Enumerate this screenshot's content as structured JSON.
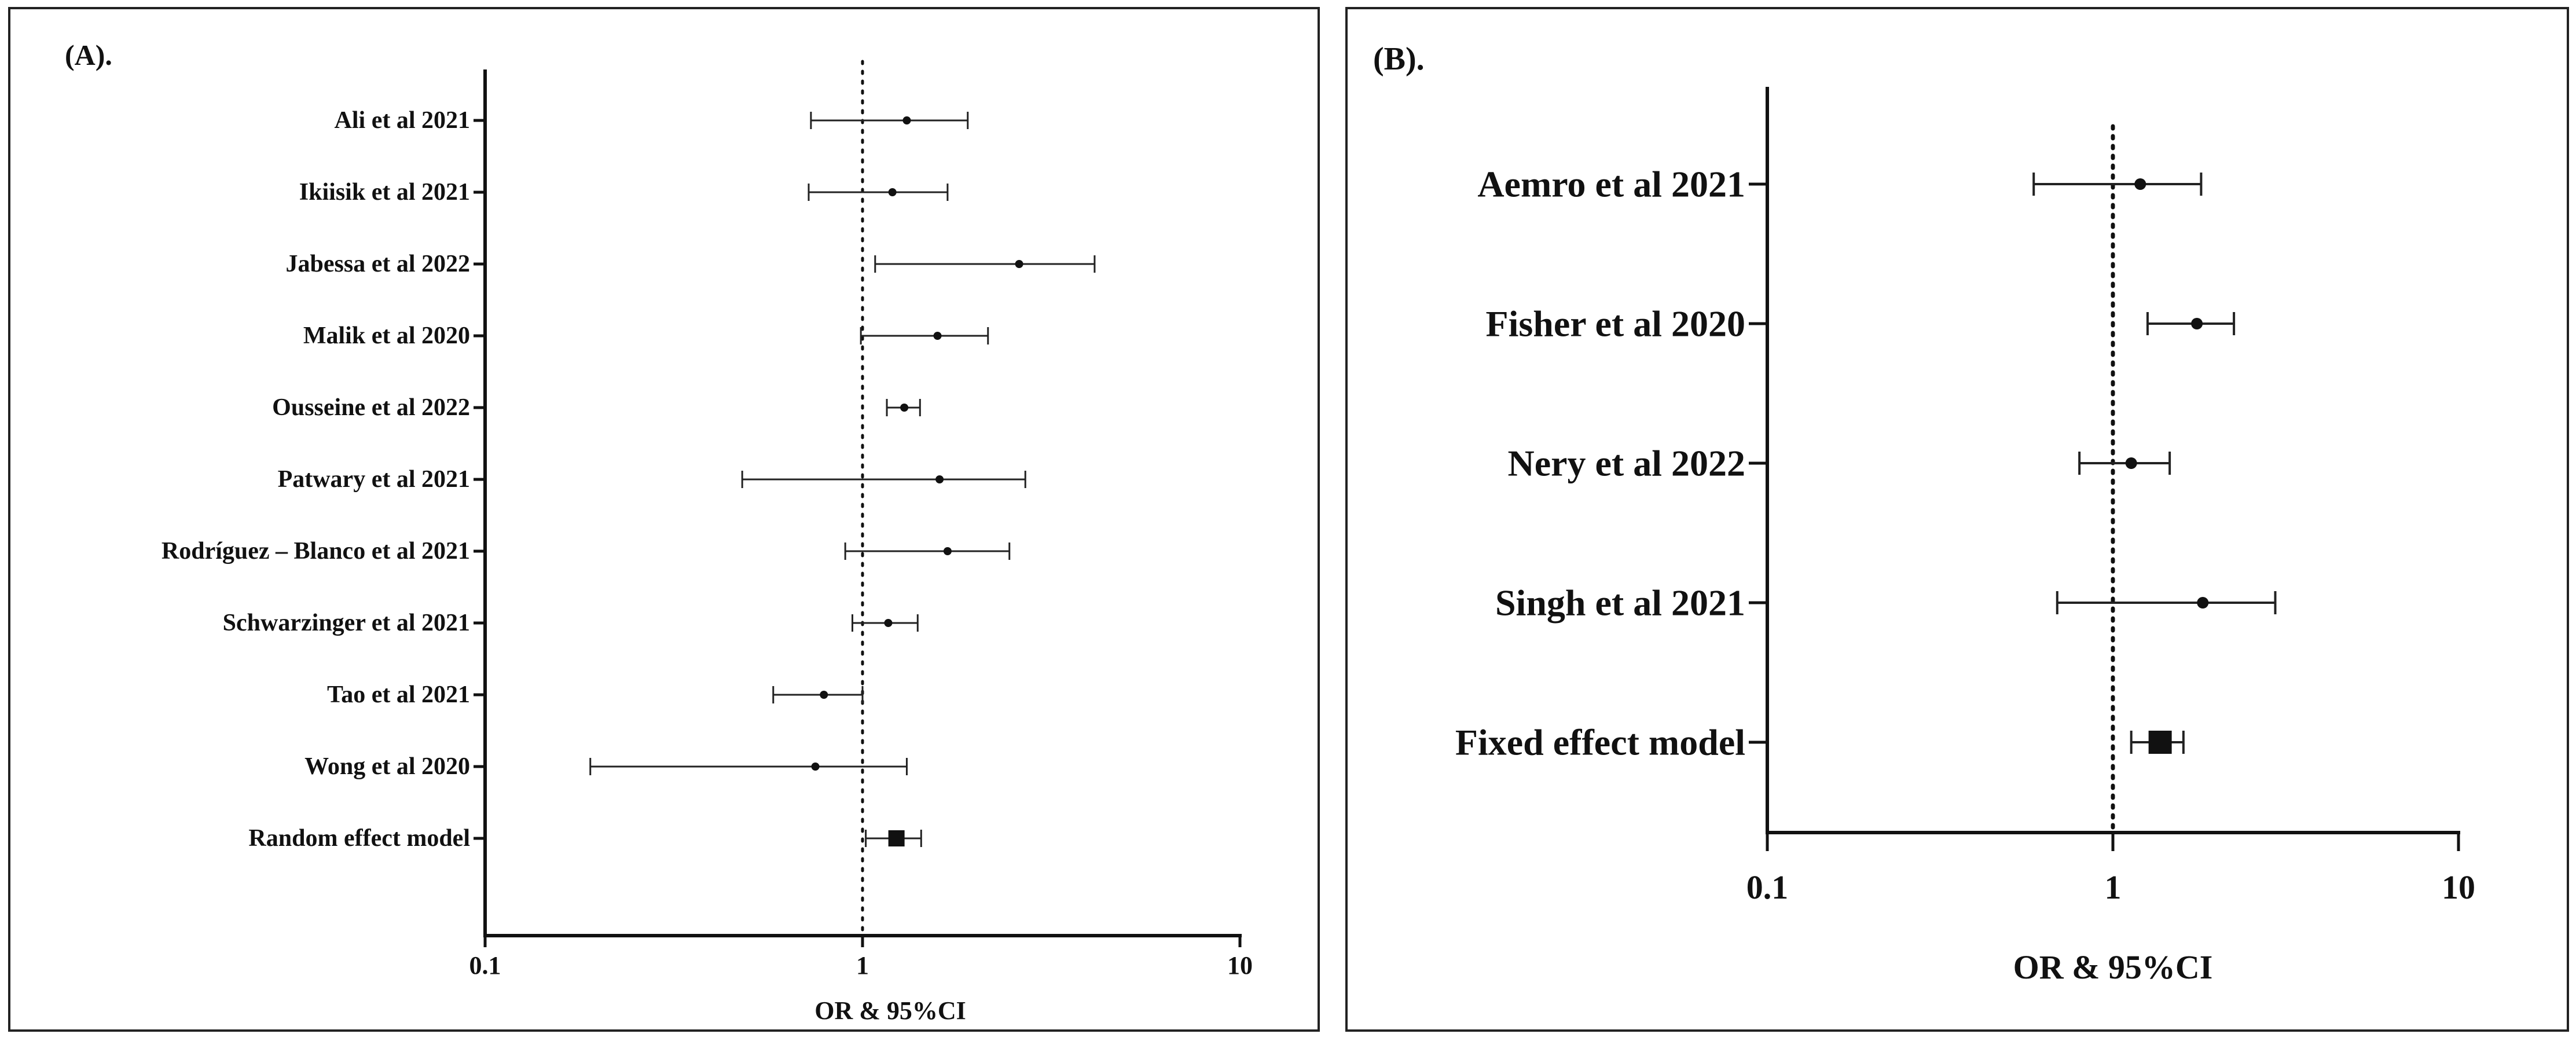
{
  "figure": {
    "panels": [
      {
        "label": "(A)."
      },
      {
        "label": "(B)."
      }
    ]
  },
  "chart_data": [
    {
      "type": "forest",
      "panel": "(A).",
      "xlabel": "OR & 95%CI",
      "ylabel": "",
      "x_scale": "log",
      "xlim": [
        0.1,
        10
      ],
      "x_ticks": [
        "0.1",
        "1",
        "10"
      ],
      "reference_line": 1,
      "studies": [
        {
          "label": "Ali et al 2021",
          "or": 1.31,
          "lower": 0.73,
          "upper": 1.9
        },
        {
          "label": "Ikiisik et al 2021",
          "or": 1.2,
          "lower": 0.72,
          "upper": 1.68
        },
        {
          "label": "Jabessa et al 2022",
          "or": 2.6,
          "lower": 1.08,
          "upper": 4.12
        },
        {
          "label": "Malik et al 2020",
          "or": 1.58,
          "lower": 0.99,
          "upper": 2.15
        },
        {
          "label": "Ousseine et al 2022",
          "or": 1.29,
          "lower": 1.16,
          "upper": 1.42
        },
        {
          "label": "Patwary et al 2021",
          "or": 1.6,
          "lower": 0.48,
          "upper": 2.7
        },
        {
          "label": "Rodríguez – Blanco et al 2021",
          "or": 1.68,
          "lower": 0.9,
          "upper": 2.45
        },
        {
          "label": "Schwarzinger et al 2021",
          "or": 1.17,
          "lower": 0.94,
          "upper": 1.4
        },
        {
          "label": "Tao et al 2021",
          "or": 0.79,
          "lower": 0.58,
          "upper": 1.0
        },
        {
          "label": "Wong et al 2020",
          "or": 0.75,
          "lower": 0.19,
          "upper": 1.31
        }
      ],
      "pooled": {
        "label": "Random effect model",
        "or": 1.23,
        "lower": 1.02,
        "upper": 1.43
      }
    },
    {
      "type": "forest",
      "panel": "(B).",
      "xlabel": "OR & 95%CI",
      "ylabel": "",
      "x_scale": "log",
      "xlim": [
        0.1,
        10
      ],
      "x_ticks": [
        "0.1",
        "1",
        "10"
      ],
      "reference_line": 1,
      "studies": [
        {
          "label": "Aemro et al 2021",
          "or": 1.2,
          "lower": 0.59,
          "upper": 1.8
        },
        {
          "label": "Fisher et al 2020",
          "or": 1.75,
          "lower": 1.26,
          "upper": 2.24
        },
        {
          "label": "Nery et al 2022",
          "or": 1.13,
          "lower": 0.8,
          "upper": 1.46
        },
        {
          "label": "Singh et al 2021",
          "or": 1.82,
          "lower": 0.69,
          "upper": 2.95
        }
      ],
      "pooled": {
        "label": "Fixed effect model",
        "or": 1.37,
        "lower": 1.13,
        "upper": 1.6
      }
    }
  ]
}
